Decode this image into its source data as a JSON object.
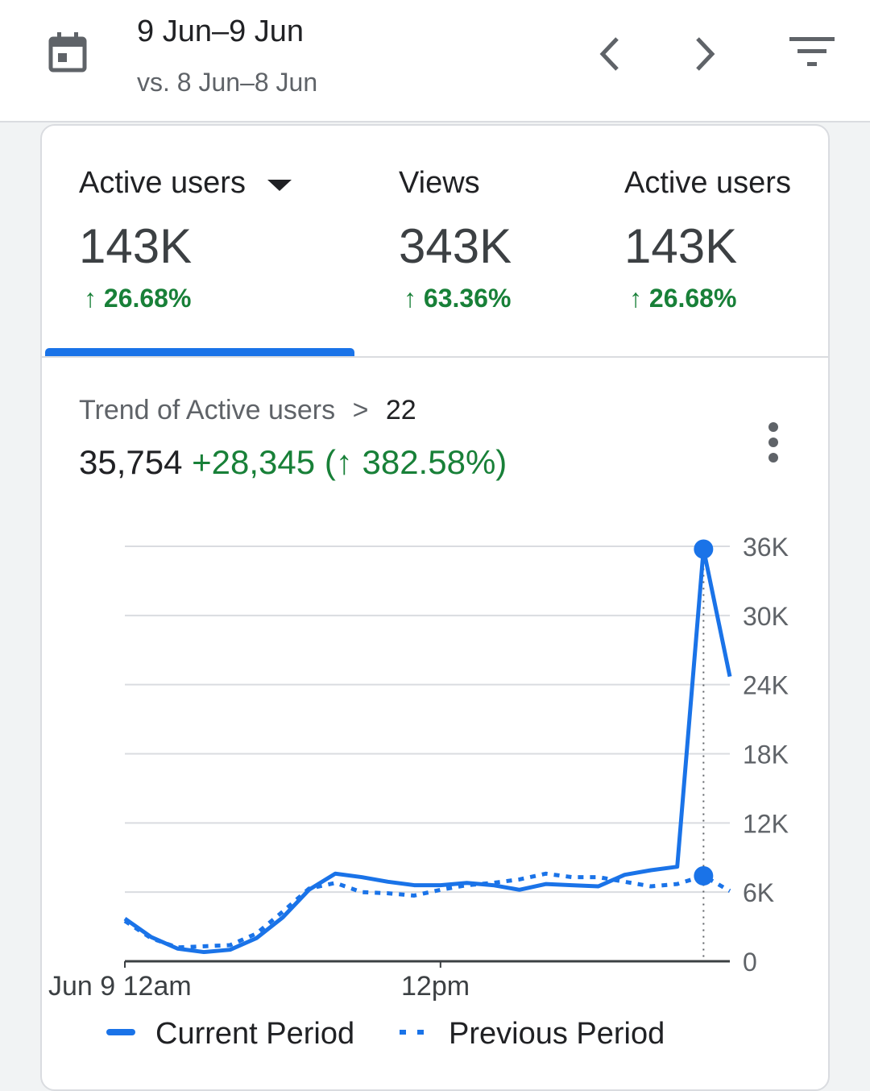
{
  "header": {
    "date_range": "9 Jun–9 Jun",
    "comparison": "vs. 8 Jun–8 Jun",
    "icons": [
      "calendar-icon",
      "chevron-left-icon",
      "chevron-right-icon",
      "filter-icon"
    ]
  },
  "metrics": [
    {
      "label": "Active users",
      "value": "143K",
      "change": "↑ 26.68%",
      "selected": true,
      "has_dropdown": true
    },
    {
      "label": "Views",
      "value": "343K",
      "change": "↑ 63.36%"
    },
    {
      "label": "Active users",
      "value": "143K",
      "change": "↑ 26.68%"
    }
  ],
  "trend": {
    "title": "Trend of Active users",
    "separator": ">",
    "hour": "22",
    "value": "35,754",
    "delta": "+28,345",
    "pct_open": "(",
    "pct": "↑ 382.58%",
    "pct_close": ")"
  },
  "colors": {
    "accent": "#1a73e8",
    "positive": "#188038"
  },
  "chart_data": {
    "type": "line",
    "x": [
      0,
      1,
      2,
      3,
      4,
      5,
      6,
      7,
      8,
      9,
      10,
      11,
      12,
      13,
      14,
      15,
      16,
      17,
      18,
      19,
      20,
      21,
      22,
      23
    ],
    "x_tick_labels": [
      "Jun 9 12am",
      "12pm"
    ],
    "y_tick_labels": [
      "0",
      "6K",
      "12K",
      "18K",
      "24K",
      "30K",
      "36K"
    ],
    "ylim": [
      0,
      36000
    ],
    "grid": true,
    "legend_placement": "bottom",
    "highlighted_x": 22,
    "series": [
      {
        "name": "Current Period",
        "style": "solid",
        "values": [
          3700,
          2100,
          1100,
          800,
          1000,
          2000,
          3800,
          6200,
          7600,
          7300,
          6900,
          6600,
          6600,
          6800,
          6600,
          6200,
          6700,
          6600,
          6500,
          7500,
          7900,
          8200,
          35754,
          24700
        ]
      },
      {
        "name": "Previous Period",
        "style": "dotted",
        "values": [
          3500,
          2000,
          1200,
          1300,
          1400,
          2400,
          4300,
          6300,
          6800,
          6000,
          5900,
          5700,
          6200,
          6600,
          6800,
          7100,
          7600,
          7300,
          7300,
          6900,
          6500,
          6700,
          7409,
          6100
        ]
      }
    ]
  }
}
